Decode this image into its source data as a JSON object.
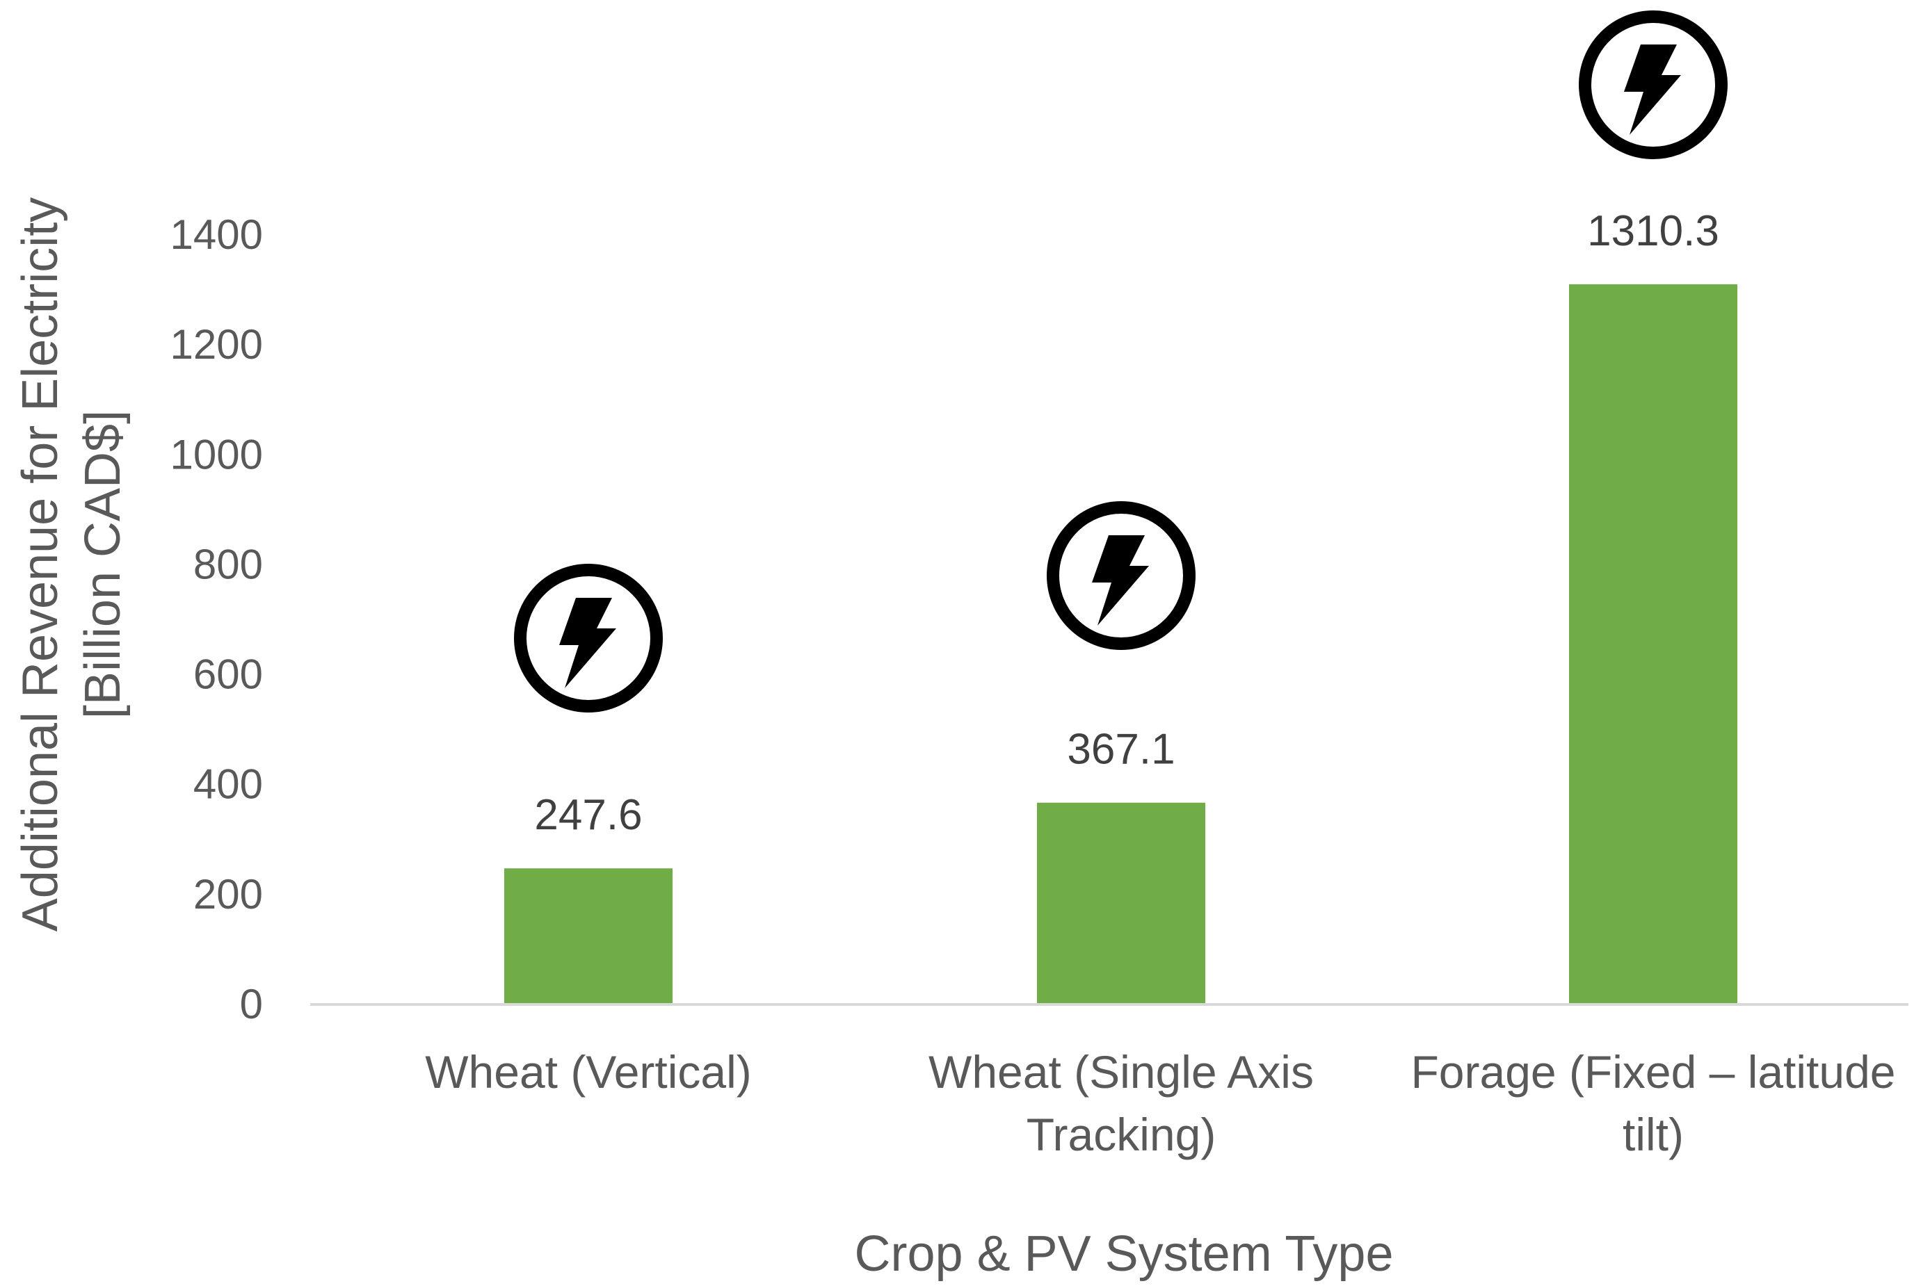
{
  "chart_data": {
    "type": "bar",
    "title": "",
    "categories": [
      [
        "Wheat (Vertical)"
      ],
      [
        "Wheat (Single Axis",
        "Tracking)"
      ],
      [
        "Forage (Fixed – latitude",
        "tilt)"
      ]
    ],
    "values": [
      247.6,
      367.1,
      1310.3
    ],
    "data_labels": [
      "247.6",
      "367.1",
      "1310.3"
    ],
    "xlabel": "Crop & PV System Type",
    "ylabel": [
      "Additional Revenue for Electricity",
      "[Billion CAD$]"
    ],
    "ylim": [
      0,
      1400
    ],
    "yticks": [
      "0",
      "200",
      "400",
      "600",
      "800",
      "1000",
      "1200",
      "1400"
    ],
    "grid": false,
    "legend": "none",
    "bar_color": "#70ad47",
    "axis_color": "#d9d9d9",
    "annotation_icon": "lightning-bolt-circle-icon"
  }
}
